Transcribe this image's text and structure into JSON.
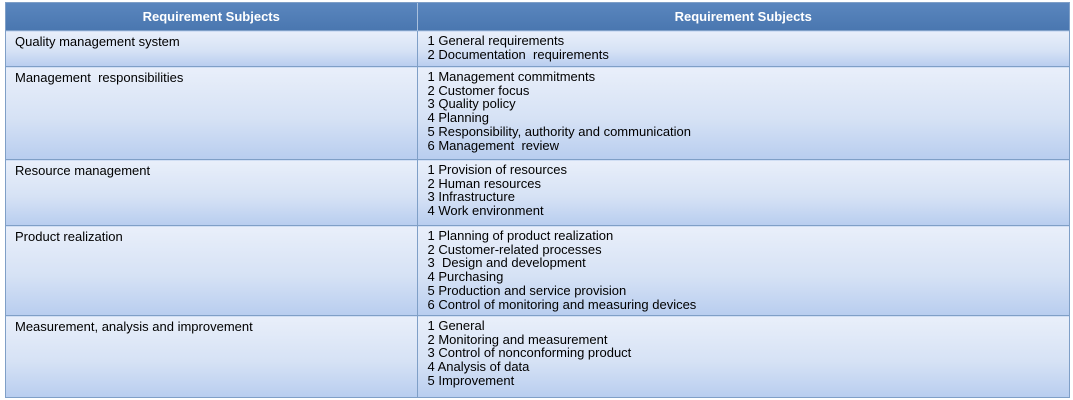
{
  "header": {
    "col1": "Requirement Subjects",
    "col2": "Requirement Subjects"
  },
  "rows": [
    {
      "subject": "Quality management system",
      "items": [
        "1 General requirements",
        "2 Documentation  requirements"
      ]
    },
    {
      "subject": "Management  responsibilities",
      "items": [
        "1 Management commitments",
        "2 Customer focus",
        "3 Quality policy",
        "4 Planning",
        "5 Responsibility, authority and communication",
        "6 Management  review"
      ]
    },
    {
      "subject": "Resource management",
      "items": [
        "1 Provision of resources",
        "2 Human resources",
        "3 Infrastructure",
        "4 Work environment"
      ]
    },
    {
      "subject": "Product realization",
      "items": [
        "1 Planning of product realization",
        "2 Customer-related processes",
        "3  Design and development",
        "4 Purchasing",
        "5 Production and service provision",
        "6 Control of monitoring and measuring devices"
      ]
    },
    {
      "subject": "Measurement, analysis and improvement",
      "items": [
        "1 General",
        "2 Monitoring and measurement",
        "3 Control of nonconforming product",
        "4 Analysis of data",
        "5 Improvement"
      ]
    }
  ]
}
